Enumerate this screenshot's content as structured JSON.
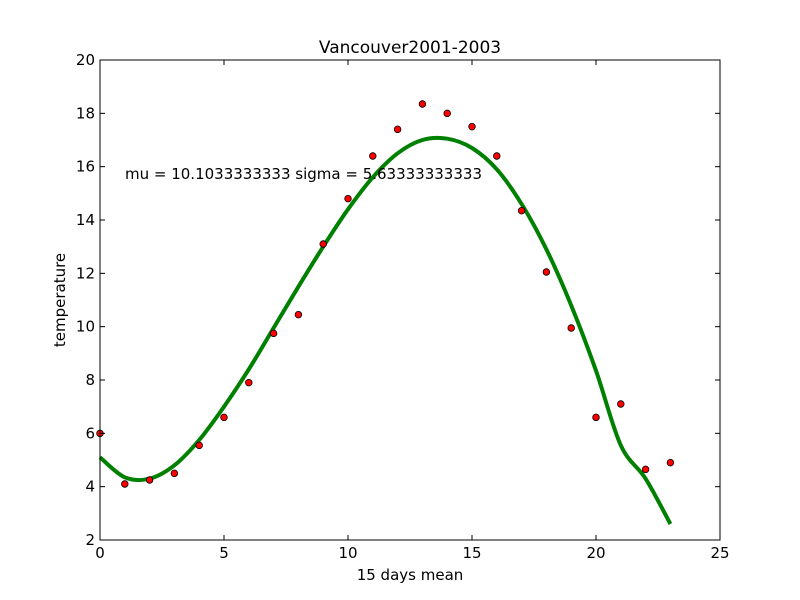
{
  "chart_data": {
    "type": "scatter",
    "title": "Vancouver2001-2003",
    "xlabel": "15 days mean",
    "ylabel": "temperature",
    "xlim": [
      0,
      25
    ],
    "ylim": [
      2,
      20
    ],
    "xticks": [
      0,
      5,
      10,
      15,
      20,
      25
    ],
    "yticks": [
      2,
      4,
      6,
      8,
      10,
      12,
      14,
      16,
      18,
      20
    ],
    "grid": false,
    "annotation": "mu = 10.1033333333 sigma = 5.63333333333",
    "series": [
      {
        "kind": "scatter",
        "color": "#ff0000",
        "x": [
          0,
          1,
          2,
          3,
          4,
          5,
          6,
          7,
          8,
          9,
          10,
          11,
          12,
          13,
          14,
          15,
          16,
          17,
          18,
          19,
          20,
          21,
          22,
          23
        ],
        "y": [
          6.0,
          4.1,
          4.25,
          4.5,
          5.55,
          6.6,
          7.9,
          9.75,
          10.45,
          13.1,
          14.8,
          16.4,
          17.4,
          18.35,
          18.0,
          17.5,
          16.4,
          14.35,
          12.05,
          9.95,
          6.6,
          7.1,
          4.65,
          4.9
        ]
      },
      {
        "kind": "line",
        "color": "#008000",
        "x": [
          0,
          1,
          2,
          3,
          4,
          5,
          6,
          7,
          8,
          9,
          10,
          11,
          12,
          13,
          14,
          15,
          16,
          17,
          18,
          19,
          20,
          21,
          22,
          23
        ],
        "y": [
          5.1,
          4.35,
          4.3,
          4.8,
          5.75,
          7.0,
          8.4,
          9.95,
          11.5,
          13.0,
          14.4,
          15.6,
          16.5,
          17.0,
          17.05,
          16.7,
          15.9,
          14.6,
          12.9,
          10.8,
          8.35,
          5.55,
          4.3,
          2.6
        ]
      }
    ]
  }
}
